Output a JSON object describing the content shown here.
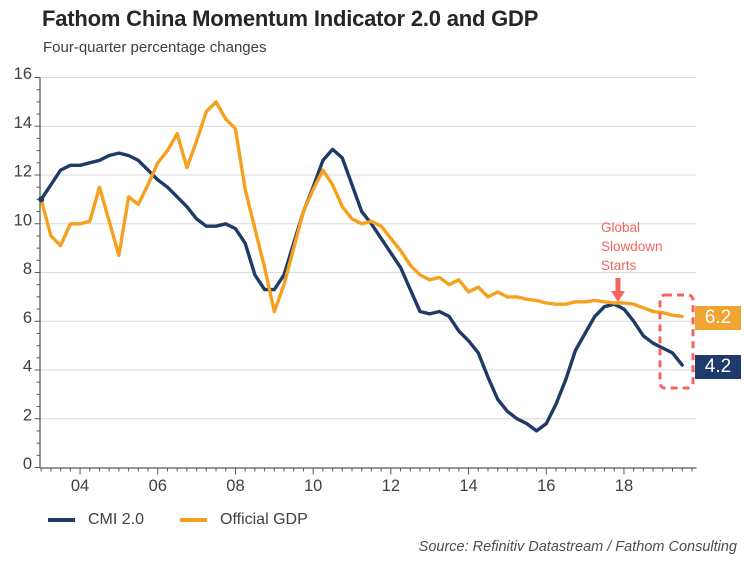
{
  "title": "Fathom China Momentum Indicator 2.0 and GDP",
  "subtitle": "Four-quarter percentage changes",
  "source": "Source: Refinitiv Datastream / Fathom Consulting",
  "annotation": {
    "lines": [
      "Global",
      "Slowdown",
      "Starts"
    ]
  },
  "end_labels": {
    "gdp": "6.2",
    "cmi": "4.2"
  },
  "legend": [
    {
      "label": "CMI 2.0",
      "color_key": "cmi"
    },
    {
      "label": "Official GDP",
      "color_key": "gdp"
    }
  ],
  "colors": {
    "cmi": "#1E3A66",
    "gdp": "#F5A01E",
    "cmi_badge": "#1F3B69",
    "gdp_badge": "#F0A431",
    "annotation": "#F4655F",
    "grid": "#D9D9D9",
    "axis": "#595959",
    "text": "#404040",
    "title": "#262626",
    "source": "#4D4D4D"
  },
  "chart_data": {
    "type": "line",
    "title": "Fathom China Momentum Indicator 2.0 and GDP",
    "subtitle": "Four-quarter percentage changes",
    "xlabel": "",
    "ylabel": "Four-quarter percentage change",
    "xlim": [
      2003,
      2019.9
    ],
    "ylim": [
      0,
      16
    ],
    "grid": "horizontal",
    "legend_position": "bottom-left",
    "y_ticks": [
      16,
      14,
      12,
      10,
      8,
      6,
      4,
      2,
      0
    ],
    "y_minor_step": 0.5,
    "x_minor_step": 0.25,
    "x_ticks": [
      {
        "label": "04",
        "year": 2004
      },
      {
        "label": "06",
        "year": 2006
      },
      {
        "label": "08",
        "year": 2008
      },
      {
        "label": "10",
        "year": 2010
      },
      {
        "label": "12",
        "year": 2012
      },
      {
        "label": "14",
        "year": 2014
      },
      {
        "label": "16",
        "year": 2016
      },
      {
        "label": "18",
        "year": 2018
      }
    ],
    "x": [
      2003,
      2003.25,
      2003.5,
      2003.75,
      2004,
      2004.25,
      2004.5,
      2004.75,
      2005,
      2005.25,
      2005.5,
      2005.75,
      2006,
      2006.25,
      2006.5,
      2006.75,
      2007,
      2007.25,
      2007.5,
      2007.75,
      2008,
      2008.25,
      2008.5,
      2008.75,
      2009,
      2009.25,
      2009.5,
      2009.75,
      2010,
      2010.25,
      2010.5,
      2010.75,
      2011,
      2011.25,
      2011.5,
      2011.75,
      2012,
      2012.25,
      2012.5,
      2012.75,
      2013,
      2013.25,
      2013.5,
      2013.75,
      2014,
      2014.25,
      2014.5,
      2014.75,
      2015,
      2015.25,
      2015.5,
      2015.75,
      2016,
      2016.25,
      2016.5,
      2016.75,
      2017,
      2017.25,
      2017.5,
      2017.75,
      2018,
      2018.25,
      2018.5,
      2018.75,
      2019,
      2019.25,
      2019.5
    ],
    "series": [
      {
        "name": "CMI 2.0",
        "color_key": "cmi",
        "values": [
          11.0,
          11.6,
          12.2,
          12.4,
          12.4,
          12.5,
          12.6,
          12.8,
          12.9,
          12.8,
          12.6,
          12.2,
          11.8,
          11.5,
          11.1,
          10.7,
          10.2,
          9.9,
          9.9,
          10.0,
          9.8,
          9.2,
          7.9,
          7.3,
          7.3,
          7.9,
          9.2,
          10.5,
          11.5,
          12.6,
          13.05,
          12.7,
          11.6,
          10.5,
          10.0,
          9.4,
          8.8,
          8.2,
          7.3,
          6.4,
          6.3,
          6.4,
          6.2,
          5.6,
          5.2,
          4.7,
          3.7,
          2.8,
          2.3,
          2.0,
          1.8,
          1.5,
          1.8,
          2.6,
          3.6,
          4.8,
          5.5,
          6.2,
          6.6,
          6.7,
          6.5,
          6.0,
          5.4,
          5.1,
          4.9,
          4.7,
          4.2
        ]
      },
      {
        "name": "Official GDP",
        "color_key": "gdp",
        "values": [
          11.0,
          9.5,
          9.1,
          10.0,
          10.0,
          10.1,
          11.5,
          10.1,
          8.7,
          11.1,
          10.8,
          11.6,
          12.5,
          13.0,
          13.7,
          12.3,
          13.4,
          14.6,
          15.0,
          14.3,
          13.9,
          11.4,
          9.8,
          8.2,
          6.4,
          7.5,
          9.0,
          10.5,
          11.4,
          12.2,
          11.6,
          10.7,
          10.2,
          10.0,
          10.1,
          9.9,
          9.4,
          8.9,
          8.3,
          7.9,
          7.7,
          7.8,
          7.5,
          7.7,
          7.2,
          7.4,
          7.0,
          7.2,
          7.0,
          7.0,
          6.9,
          6.85,
          6.75,
          6.7,
          6.7,
          6.8,
          6.8,
          6.85,
          6.8,
          6.75,
          6.75,
          6.7,
          6.55,
          6.4,
          6.35,
          6.25,
          6.2
        ]
      }
    ],
    "annotations": [
      {
        "text": "Global Slowdown Starts",
        "x": 2017.85,
        "y": 6.8
      },
      {
        "text": "6.2",
        "series": "Official GDP",
        "x": 2019.5
      },
      {
        "text": "4.2",
        "series": "CMI 2.0",
        "x": 2019.5
      }
    ]
  }
}
